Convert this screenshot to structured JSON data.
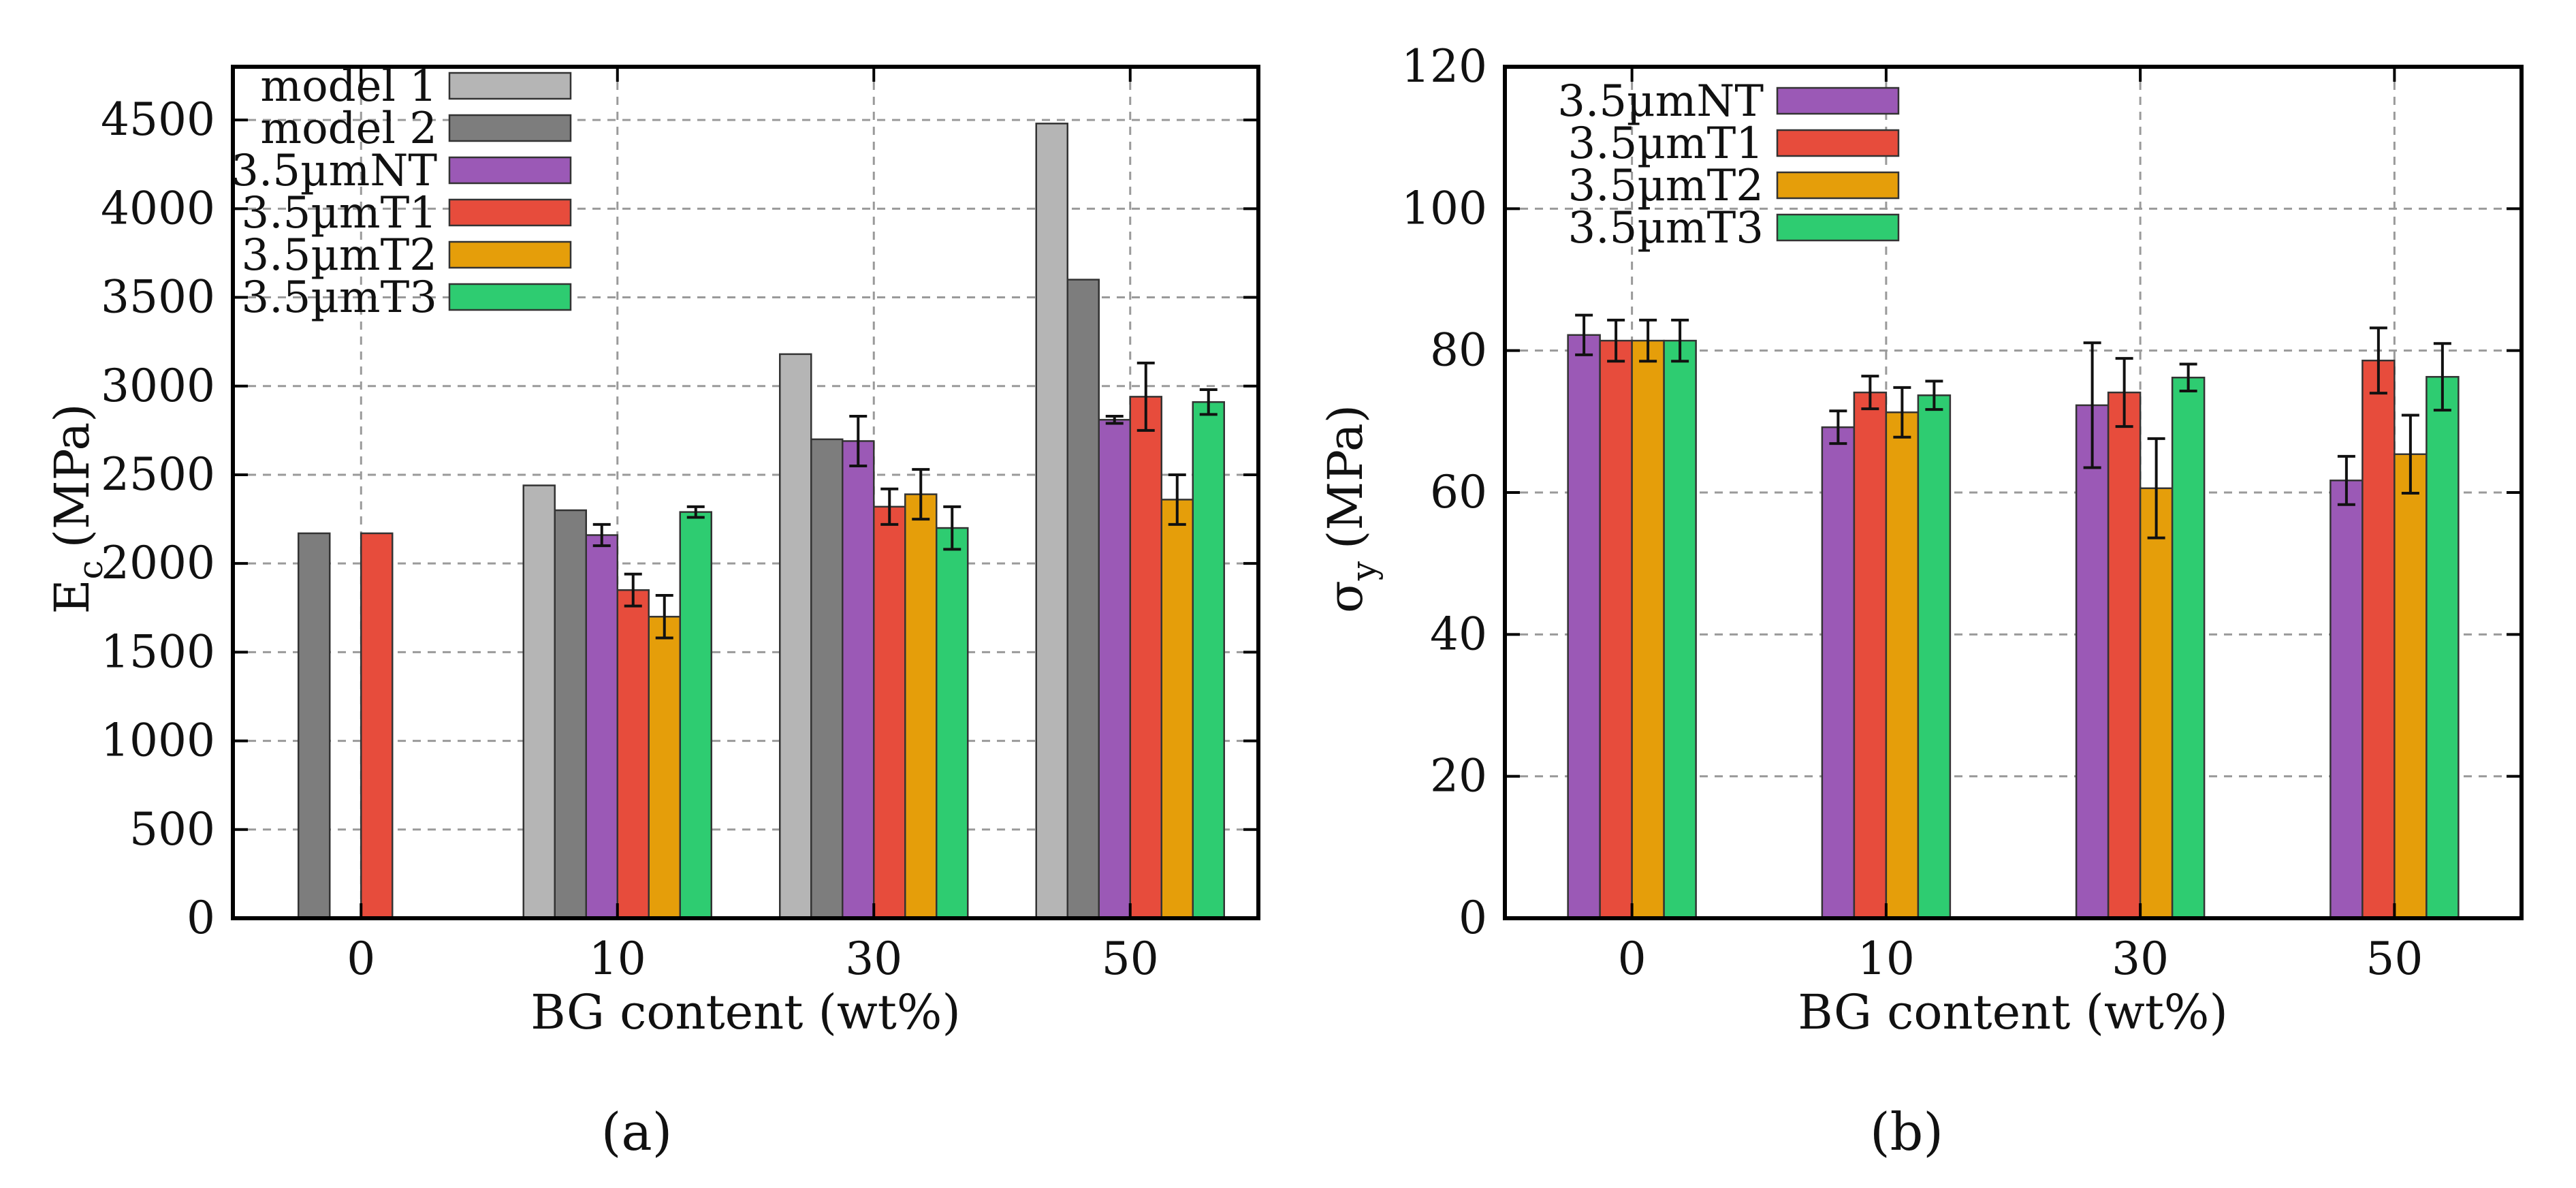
{
  "colors": {
    "model 1": "#b5b5b5",
    "model 2": "#7d7d7d",
    "3.5µmNT": "#9b59b6",
    "3.5µmT1": "#e74c3c",
    "3.5µmT2": "#e59e0a",
    "3.5µmT3": "#2ecc71"
  },
  "chart_data": [
    {
      "type": "bar",
      "panel_label": "(a)",
      "xlabel": "BG content (wt%)",
      "ylabel": "E",
      "ylabel_sub": "c",
      "ylabel_unit": "(MPa)",
      "categories": [
        "0",
        "10",
        "30",
        "50"
      ],
      "ylim": [
        0,
        4800
      ],
      "yticks": [
        0,
        500,
        1000,
        1500,
        2000,
        2500,
        3000,
        3500,
        4000,
        4500
      ],
      "grid": true,
      "legend_position": "top-left",
      "series": [
        {
          "name": "model 1",
          "values": [
            null,
            2440,
            3180,
            4480
          ],
          "errors": [
            null,
            null,
            null,
            null
          ]
        },
        {
          "name": "model 2",
          "values": [
            2170,
            2300,
            2700,
            3600
          ],
          "errors": [
            null,
            null,
            null,
            null
          ]
        },
        {
          "name": "3.5µmNT",
          "values": [
            null,
            2160,
            2690,
            2810
          ],
          "errors": [
            null,
            60,
            140,
            20
          ]
        },
        {
          "name": "3.5µmT1",
          "values": [
            2170,
            1850,
            2320,
            2940
          ],
          "errors": [
            null,
            90,
            100,
            190
          ]
        },
        {
          "name": "3.5µmT2",
          "values": [
            null,
            1700,
            2390,
            2360
          ],
          "errors": [
            null,
            120,
            140,
            140
          ]
        },
        {
          "name": "3.5µmT3",
          "values": [
            null,
            2290,
            2200,
            2910
          ],
          "errors": [
            null,
            30,
            120,
            70
          ]
        }
      ]
    },
    {
      "type": "bar",
      "panel_label": "(b)",
      "xlabel": "BG content (wt%)",
      "ylabel": "σ",
      "ylabel_sub": "y",
      "ylabel_unit": "(MPa)",
      "categories": [
        "0",
        "10",
        "30",
        "50"
      ],
      "ylim": [
        0,
        120
      ],
      "yticks": [
        0,
        20,
        40,
        60,
        80,
        100,
        120
      ],
      "grid": true,
      "legend_position": "top-left",
      "series": [
        {
          "name": "3.5µmNT",
          "values": [
            82.2,
            69.2,
            72.3,
            61.7
          ],
          "errors": [
            2.8,
            2.3,
            8.8,
            3.4
          ]
        },
        {
          "name": "3.5µmT1",
          "values": [
            81.4,
            74.1,
            74.1,
            78.6
          ],
          "errors": [
            2.9,
            2.3,
            4.8,
            4.6
          ]
        },
        {
          "name": "3.5µmT2",
          "values": [
            81.4,
            71.3,
            60.6,
            65.4
          ],
          "errors": [
            2.9,
            3.5,
            7.0,
            5.5
          ]
        },
        {
          "name": "3.5µmT3",
          "values": [
            81.4,
            73.7,
            76.2,
            76.3
          ],
          "errors": [
            2.9,
            2.0,
            1.9,
            4.7
          ]
        }
      ]
    }
  ]
}
